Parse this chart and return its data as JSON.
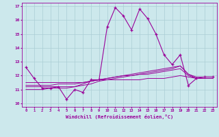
{
  "xlabel": "Windchill (Refroidissement éolien,°C)",
  "bg_color": "#cce8ec",
  "line_color": "#990099",
  "grid_color": "#aacdd4",
  "xlim": [
    -0.5,
    23.5
  ],
  "ylim": [
    9.75,
    17.25
  ],
  "xtick_labels": [
    "0",
    "1",
    "2",
    "3",
    "4",
    "5",
    "6",
    "7",
    "8",
    "9",
    "10",
    "11",
    "12",
    "13",
    "14",
    "15",
    "16",
    "17",
    "18",
    "19",
    "20",
    "21",
    "22",
    "23"
  ],
  "ytick_vals": [
    10,
    11,
    12,
    13,
    14,
    15,
    16,
    17
  ],
  "series1": [
    12.6,
    11.8,
    11.1,
    11.1,
    11.2,
    10.3,
    11.0,
    10.8,
    11.7,
    11.7,
    15.5,
    16.9,
    16.3,
    15.3,
    16.8,
    16.1,
    15.0,
    13.5,
    12.8,
    13.5,
    11.3,
    11.8,
    11.9,
    11.9
  ],
  "series2": [
    11.5,
    11.5,
    11.5,
    11.5,
    11.5,
    11.5,
    11.5,
    11.5,
    11.6,
    11.7,
    11.7,
    11.7,
    11.7,
    11.7,
    11.7,
    11.8,
    11.8,
    11.8,
    11.9,
    12.0,
    11.9,
    11.8,
    11.8,
    11.8
  ],
  "series3": [
    11.3,
    11.3,
    11.3,
    11.3,
    11.4,
    11.4,
    11.4,
    11.5,
    11.6,
    11.7,
    11.8,
    11.9,
    12.0,
    12.0,
    12.1,
    12.1,
    12.2,
    12.3,
    12.4,
    12.5,
    12.0,
    11.8,
    11.8,
    11.8
  ],
  "series4": [
    11.2,
    11.2,
    11.2,
    11.2,
    11.2,
    11.2,
    11.2,
    11.3,
    11.4,
    11.6,
    11.7,
    11.8,
    11.9,
    12.0,
    12.1,
    12.2,
    12.3,
    12.4,
    12.5,
    12.7,
    12.1,
    11.8,
    11.8,
    11.8
  ],
  "series5": [
    11.0,
    11.0,
    11.0,
    11.1,
    11.1,
    11.1,
    11.2,
    11.4,
    11.6,
    11.7,
    11.8,
    11.9,
    12.0,
    12.1,
    12.2,
    12.3,
    12.4,
    12.5,
    12.6,
    12.7,
    12.1,
    11.9,
    11.9,
    11.9
  ]
}
